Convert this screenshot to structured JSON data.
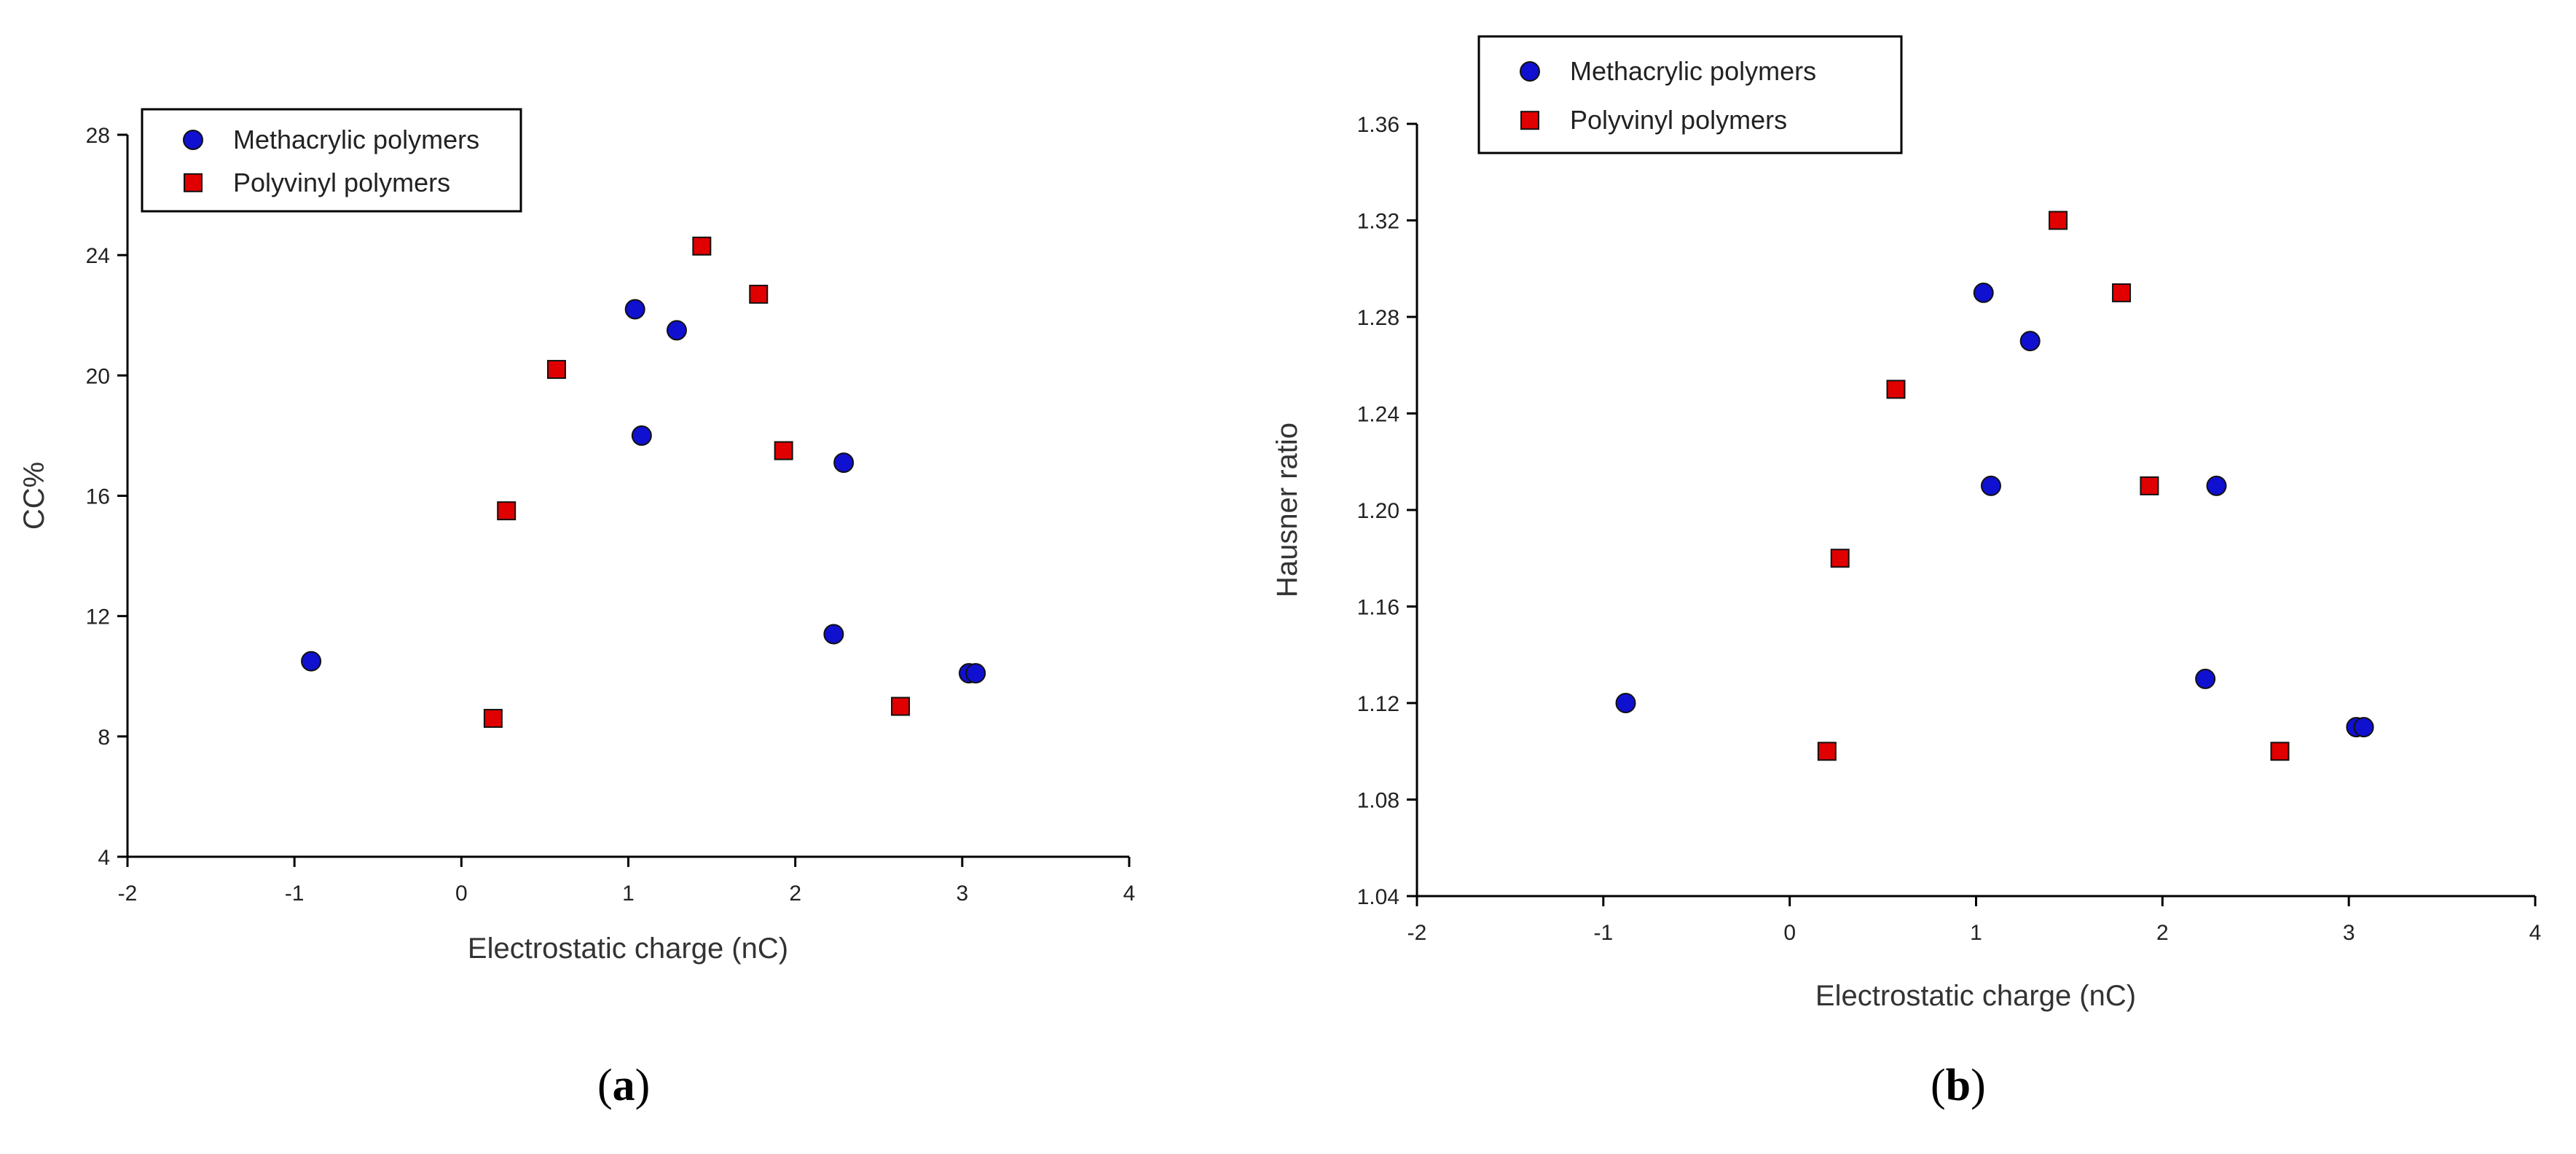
{
  "chart_data": [
    {
      "type": "scatter",
      "panel_label": "a",
      "xlabel": "Electrostatic charge (nC)",
      "ylabel": "CC%",
      "xlim": [
        -2,
        4
      ],
      "ylim": [
        4,
        28
      ],
      "xticks": [
        -2,
        -1,
        0,
        1,
        2,
        3,
        4
      ],
      "yticks": [
        4,
        8,
        12,
        16,
        20,
        24,
        28
      ],
      "ytick_labels": [
        "4",
        "8",
        "12",
        "16",
        "20",
        "24",
        "28"
      ],
      "legend_position": "top-left",
      "series": [
        {
          "name": "Methacrylic polymers",
          "marker": "circle",
          "color": "#1010d0",
          "points": [
            [
              -0.9,
              10.5
            ],
            [
              1.04,
              22.2
            ],
            [
              1.08,
              18.0
            ],
            [
              1.29,
              21.5
            ],
            [
              2.23,
              11.4
            ],
            [
              2.29,
              17.1
            ],
            [
              3.04,
              10.1
            ],
            [
              3.08,
              10.1
            ]
          ]
        },
        {
          "name": "Polyvinyl polymers",
          "marker": "square",
          "color": "#e00000",
          "points": [
            [
              0.19,
              8.6
            ],
            [
              0.27,
              15.5
            ],
            [
              0.57,
              20.2
            ],
            [
              1.44,
              24.3
            ],
            [
              1.78,
              22.7
            ],
            [
              1.93,
              17.5
            ],
            [
              2.63,
              9.0
            ]
          ]
        }
      ]
    },
    {
      "type": "scatter",
      "panel_label": "b",
      "xlabel": "Electrostatic charge (nC)",
      "ylabel": "Hausner ratio",
      "xlim": [
        -2,
        4
      ],
      "ylim": [
        1.04,
        1.36
      ],
      "xticks": [
        -2,
        -1,
        0,
        1,
        2,
        3,
        4
      ],
      "yticks": [
        1.04,
        1.08,
        1.12,
        1.16,
        1.2,
        1.24,
        1.28,
        1.32,
        1.36
      ],
      "ytick_labels": [
        "1.04",
        "1.08",
        "1.12",
        "1.16",
        "1.20",
        "1.24",
        "1.28",
        "1.32",
        "1.36"
      ],
      "legend_position": "top-left",
      "series": [
        {
          "name": "Methacrylic polymers",
          "marker": "circle",
          "color": "#1010d0",
          "points": [
            [
              -0.88,
              1.12
            ],
            [
              1.04,
              1.29
            ],
            [
              1.08,
              1.21
            ],
            [
              1.29,
              1.27
            ],
            [
              2.23,
              1.13
            ],
            [
              2.29,
              1.21
            ],
            [
              3.04,
              1.11
            ],
            [
              3.08,
              1.11
            ]
          ]
        },
        {
          "name": "Polyvinyl polymers",
          "marker": "square",
          "color": "#e00000",
          "points": [
            [
              0.2,
              1.1
            ],
            [
              0.27,
              1.18
            ],
            [
              0.57,
              1.25
            ],
            [
              1.44,
              1.32
            ],
            [
              1.78,
              1.29
            ],
            [
              1.93,
              1.21
            ],
            [
              2.63,
              1.1
            ]
          ]
        }
      ]
    }
  ]
}
